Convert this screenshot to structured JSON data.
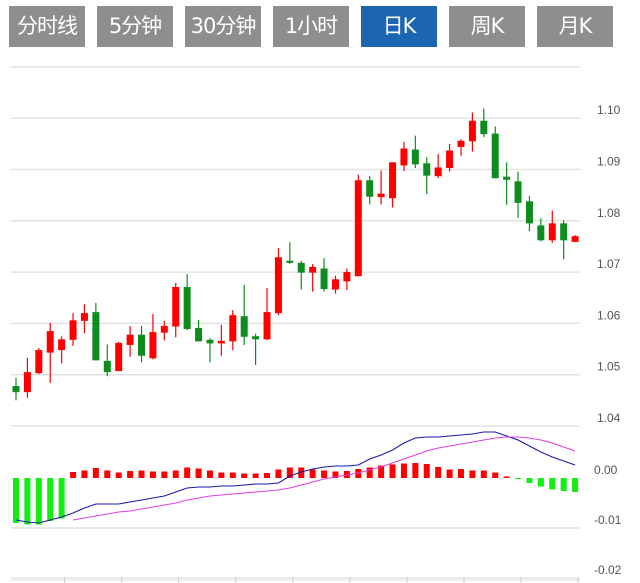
{
  "tabs": [
    {
      "label": "分时线",
      "active": false
    },
    {
      "label": "5分钟",
      "active": false
    },
    {
      "label": "30分钟",
      "active": false
    },
    {
      "label": "1小时",
      "active": false
    },
    {
      "label": "日K",
      "active": true
    },
    {
      "label": "周K",
      "active": false
    },
    {
      "label": "月K",
      "active": false
    }
  ],
  "colors": {
    "tab_bg": "#8e8e8e",
    "tab_active_bg": "#1b65b2",
    "up": "#ff0000",
    "down": "#0e8c1e",
    "macd_down": "#11ee11",
    "dif": "#1a1aa8",
    "dea": "#e040e0"
  },
  "chart_data": [
    {
      "type": "candlestick",
      "y_ticks": [
        "1.10",
        "1.09",
        "1.08",
        "1.07",
        "1.06",
        "1.05",
        "1.04"
      ],
      "ylim": [
        1.04,
        1.11
      ],
      "grid": true,
      "candles": [
        [
          1.0478,
          1.0494,
          1.045,
          1.0466
        ],
        [
          1.0466,
          1.0533,
          1.0455,
          1.0505
        ],
        [
          1.0503,
          1.0552,
          1.0501,
          1.0548
        ],
        [
          1.0543,
          1.0601,
          1.0484,
          1.0585
        ],
        [
          1.0548,
          1.0575,
          1.0522,
          1.0569
        ],
        [
          1.0568,
          1.062,
          1.0556,
          1.0606
        ],
        [
          1.0605,
          1.0637,
          1.0581,
          1.062
        ],
        [
          1.0622,
          1.064,
          1.0528,
          1.0528
        ],
        [
          1.0527,
          1.0559,
          1.0497,
          1.0505
        ],
        [
          1.0507,
          1.0564,
          1.0507,
          1.0562
        ],
        [
          1.0558,
          1.0595,
          1.0535,
          1.0578
        ],
        [
          1.0578,
          1.0595,
          1.0524,
          1.0537
        ],
        [
          1.0532,
          1.0618,
          1.053,
          1.0583
        ],
        [
          1.0582,
          1.0605,
          1.0567,
          1.0595
        ],
        [
          1.0594,
          1.0679,
          1.0573,
          1.0671
        ],
        [
          1.0671,
          1.0696,
          1.0587,
          1.0589
        ],
        [
          1.0591,
          1.0607,
          1.0565,
          1.0565
        ],
        [
          1.0568,
          1.0571,
          1.0524,
          1.0561
        ],
        [
          1.0561,
          1.0597,
          1.0537,
          1.0566
        ],
        [
          1.0565,
          1.0626,
          1.0548,
          1.0616
        ],
        [
          1.0614,
          1.0675,
          1.0558,
          1.0574
        ],
        [
          1.0575,
          1.058,
          1.0519,
          1.0569
        ],
        [
          1.0569,
          1.0669,
          1.0567,
          1.0622
        ],
        [
          1.062,
          1.0747,
          1.0616,
          1.0729
        ],
        [
          1.0722,
          1.0758,
          1.0716,
          1.0718
        ],
        [
          1.0718,
          1.0722,
          1.0666,
          1.0699
        ],
        [
          1.0699,
          1.0716,
          1.0662,
          1.071
        ],
        [
          1.0707,
          1.0727,
          1.0662,
          1.0667
        ],
        [
          1.0666,
          1.0693,
          1.0658,
          1.0686
        ],
        [
          1.0682,
          1.0707,
          1.0665,
          1.07
        ],
        [
          1.0692,
          1.089,
          1.0692,
          1.0879
        ],
        [
          1.0879,
          1.0887,
          1.0832,
          1.0847
        ],
        [
          1.0846,
          1.0898,
          1.0832,
          1.0853
        ],
        [
          1.0844,
          1.0914,
          1.0826,
          1.0914
        ],
        [
          1.0908,
          1.0954,
          1.0897,
          1.0941
        ],
        [
          1.0939,
          1.0966,
          1.0903,
          1.091
        ],
        [
          1.0912,
          1.0924,
          1.0852,
          1.0888
        ],
        [
          1.0887,
          1.093,
          1.0883,
          1.0904
        ],
        [
          1.0903,
          1.095,
          1.0896,
          1.0937
        ],
        [
          1.0944,
          1.0959,
          1.0927,
          1.0956
        ],
        [
          1.0955,
          1.1011,
          1.0935,
          1.0995
        ],
        [
          1.0995,
          1.1019,
          1.0963,
          1.0969
        ],
        [
          1.097,
          1.0984,
          1.0883,
          1.0883
        ],
        [
          1.0886,
          1.0914,
          1.0831,
          1.088
        ],
        [
          1.0877,
          1.0896,
          1.0806,
          1.0835
        ],
        [
          1.0838,
          1.0848,
          1.078,
          1.0795
        ],
        [
          1.0791,
          1.0805,
          1.076,
          1.0762
        ],
        [
          1.0762,
          1.082,
          1.0757,
          1.0795
        ],
        [
          1.0795,
          1.0801,
          1.0725,
          1.0762
        ],
        [
          1.0759,
          1.0772,
          1.0758,
          1.077
        ]
      ],
      "candle_format": [
        "open",
        "high",
        "low",
        "close"
      ]
    },
    {
      "type": "macd",
      "y_ticks": [
        "0.00",
        "-0.01",
        "-0.02"
      ],
      "ylim": [
        -0.02,
        0.01
      ],
      "histogram": [
        -0.009,
        -0.0093,
        -0.0093,
        -0.0086,
        -0.0081,
        0.0012,
        0.0015,
        0.002,
        0.0015,
        0.0011,
        0.0014,
        0.0015,
        0.0013,
        0.0013,
        0.0015,
        0.0021,
        0.0019,
        0.0015,
        0.0011,
        0.0011,
        0.0009,
        0.0009,
        0.001,
        0.0017,
        0.0021,
        0.0021,
        0.0017,
        0.0015,
        0.0013,
        0.0014,
        0.0018,
        0.0021,
        0.0025,
        0.0027,
        0.0029,
        0.003,
        0.0028,
        0.0022,
        0.0017,
        0.0018,
        0.0015,
        0.0015,
        0.0011,
        0.0003,
        -0.0001,
        -0.001,
        -0.0017,
        -0.0023,
        -0.0026,
        -0.0028
      ],
      "dif": [
        -0.0084,
        -0.0088,
        -0.009,
        -0.0084,
        -0.0078,
        -0.007,
        -0.006,
        -0.0052,
        -0.0052,
        -0.0052,
        -0.0048,
        -0.0044,
        -0.004,
        -0.0036,
        -0.0028,
        -0.002,
        -0.0018,
        -0.0018,
        -0.0016,
        -0.0016,
        -0.0014,
        -0.0012,
        -0.0012,
        -0.001,
        0.0004,
        0.0012,
        0.0018,
        0.0022,
        0.0024,
        0.0024,
        0.0026,
        0.0038,
        0.0046,
        0.0056,
        0.007,
        0.008,
        0.0082,
        0.0082,
        0.0084,
        0.0086,
        0.0088,
        0.0092,
        0.0092,
        0.0084,
        0.0076,
        0.0064,
        0.0052,
        0.0042,
        0.0034,
        0.0026
      ],
      "dea": [
        null,
        null,
        null,
        null,
        null,
        -0.0084,
        -0.008,
        -0.0076,
        -0.0072,
        -0.0068,
        -0.0066,
        -0.0062,
        -0.0058,
        -0.0054,
        -0.005,
        -0.0044,
        -0.004,
        -0.0036,
        -0.0034,
        -0.0032,
        -0.003,
        -0.0028,
        -0.0026,
        -0.0024,
        -0.002,
        -0.0014,
        -0.0008,
        -0.0002,
        0.0002,
        0.0006,
        0.001,
        0.0016,
        0.0022,
        0.003,
        0.0038,
        0.0046,
        0.0054,
        0.006,
        0.0064,
        0.0068,
        0.0072,
        0.0076,
        0.008,
        0.0082,
        0.0082,
        0.008,
        0.0076,
        0.007,
        0.0062,
        0.0054
      ]
    }
  ]
}
